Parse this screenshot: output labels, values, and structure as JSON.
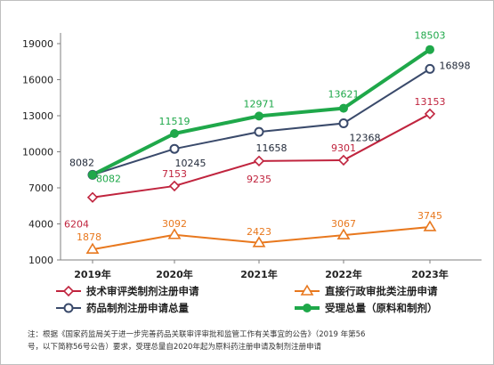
{
  "chart_data": {
    "type": "line",
    "title": "",
    "xlabel": "",
    "ylabel": "",
    "categories": [
      "2019年",
      "2020年",
      "2021年",
      "2022年",
      "2023年"
    ],
    "ylim": [
      1000,
      19000
    ],
    "yticks": [
      "1000",
      "4000",
      "7000",
      "10000",
      "13000",
      "16000",
      "19000"
    ],
    "legend_position": "bottom",
    "grid": false,
    "series": [
      {
        "name": "技术审评类制剂注册申请",
        "color": "#c0243e",
        "marker": "diamond",
        "width": 2,
        "values": [
          6204,
          7153,
          9235,
          9301,
          13153
        ],
        "labels": [
          "6204",
          "7153",
          "9235",
          "9301",
          "13153"
        ]
      },
      {
        "name": "直接行政审批类注册申请",
        "color": "#e8781e",
        "marker": "triangle",
        "width": 2,
        "values": [
          1878,
          3092,
          2423,
          3067,
          3745
        ],
        "labels": [
          "1878",
          "3092",
          "2423",
          "3067",
          "3745"
        ]
      },
      {
        "name": "药品制剂注册申请总量",
        "color": "#3a4a6b",
        "marker": "circle",
        "width": 2,
        "values": [
          8082,
          10245,
          11658,
          12368,
          16898
        ],
        "labels": [
          "8082",
          "10245",
          "11658",
          "12368",
          "16898"
        ]
      },
      {
        "name": "受理总量（原料和制剂）",
        "color": "#1fa84a",
        "marker": "circle",
        "width": 4,
        "values": [
          8082,
          11519,
          12971,
          13621,
          18503
        ],
        "labels": [
          "8082",
          "11519",
          "12971",
          "13621",
          "18503"
        ]
      }
    ]
  },
  "note": {
    "line1": "注：根据《国家药监局关于进一步完善药品关联审评审批和监管工作有关事宜的公告》（2019 年第56",
    "line2": "号，以下简称56号公告）要求，受理总量自2020年起为原料药注册申请及制剂注册申请"
  }
}
